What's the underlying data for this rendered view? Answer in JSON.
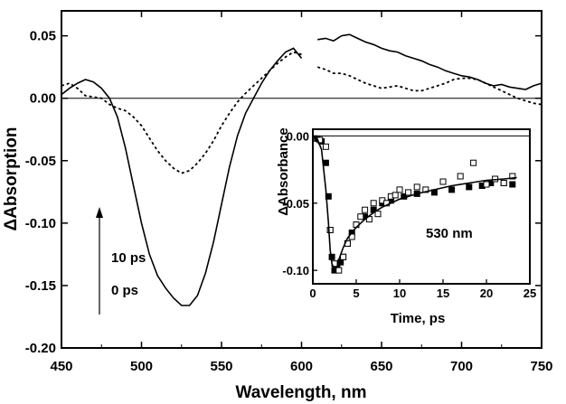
{
  "chart_data": [
    {
      "type": "line",
      "title": "",
      "xlabel": "Wavelength, nm",
      "ylabel": "ΔAbsorption",
      "xlim": [
        450,
        750
      ],
      "ylim": [
        -0.2,
        0.07
      ],
      "xticks": [
        450,
        500,
        550,
        600,
        650,
        700,
        750
      ],
      "yticks": [
        0.05,
        0.0,
        -0.05,
        -0.1,
        -0.15,
        -0.2
      ],
      "ytick_labels": [
        "0.05",
        "0.00",
        "-0.05",
        "-0.10",
        "-0.15",
        "-0.20"
      ],
      "zero_line": true,
      "grid": false,
      "series": [
        {
          "style": "solid",
          "x": [
            450,
            455,
            460,
            465,
            470,
            475,
            480,
            485,
            490,
            495,
            500,
            505,
            510,
            515,
            520,
            525,
            530,
            535,
            540,
            545,
            550,
            555,
            560,
            565,
            570,
            575,
            580,
            585,
            590,
            595,
            600,
            605,
            610,
            615,
            620,
            625,
            630,
            635,
            640,
            645,
            650,
            655,
            660,
            665,
            670,
            675,
            680,
            685,
            690,
            695,
            700,
            705,
            710,
            715,
            720,
            725,
            730,
            735,
            740,
            745,
            750
          ],
          "y": [
            0.003,
            0.008,
            0.012,
            0.015,
            0.013,
            0.008,
            0.0,
            -0.015,
            -0.04,
            -0.07,
            -0.1,
            -0.125,
            -0.142,
            -0.152,
            -0.16,
            -0.166,
            -0.166,
            -0.158,
            -0.14,
            -0.115,
            -0.085,
            -0.055,
            -0.03,
            -0.012,
            0.0,
            0.012,
            0.022,
            0.03,
            0.037,
            0.04,
            0.032,
            null,
            0.047,
            0.048,
            0.046,
            0.05,
            0.051,
            0.048,
            0.045,
            0.043,
            0.04,
            0.038,
            0.037,
            0.034,
            0.032,
            0.03,
            0.027,
            0.025,
            0.022,
            0.02,
            0.018,
            0.017,
            0.015,
            0.012,
            0.01,
            0.011,
            0.009,
            0.008,
            0.007,
            0.01,
            0.012
          ]
        },
        {
          "style": "dashed",
          "x": [
            450,
            455,
            460,
            465,
            470,
            475,
            480,
            485,
            490,
            495,
            500,
            505,
            510,
            515,
            520,
            525,
            530,
            535,
            540,
            545,
            550,
            555,
            560,
            565,
            570,
            575,
            580,
            585,
            590,
            595,
            600,
            605,
            610,
            615,
            620,
            625,
            630,
            635,
            640,
            645,
            650,
            655,
            660,
            665,
            670,
            675,
            680,
            685,
            690,
            695,
            700,
            705,
            710,
            715,
            720,
            725,
            730,
            735,
            740,
            745,
            750
          ],
          "y": [
            0.01,
            0.012,
            0.008,
            0.002,
            0.001,
            0.0,
            -0.005,
            -0.008,
            -0.01,
            -0.015,
            -0.022,
            -0.032,
            -0.042,
            -0.05,
            -0.056,
            -0.06,
            -0.058,
            -0.052,
            -0.044,
            -0.034,
            -0.022,
            -0.012,
            -0.003,
            0.004,
            0.01,
            0.016,
            0.022,
            0.028,
            0.033,
            0.037,
            0.035,
            null,
            0.025,
            0.023,
            0.02,
            0.02,
            0.018,
            0.015,
            0.012,
            0.01,
            0.008,
            0.009,
            0.01,
            0.008,
            0.006,
            0.006,
            0.008,
            0.01,
            0.012,
            0.015,
            0.016,
            0.016,
            0.015,
            0.012,
            0.009,
            0.006,
            0.003,
            0.0,
            -0.002,
            -0.004,
            -0.005
          ]
        }
      ],
      "annotations": [
        "10 ps",
        "0 ps"
      ]
    },
    {
      "type": "scatter",
      "title": "",
      "xlabel": "Time, ps",
      "ylabel": "ΔAbsorbance",
      "xlim": [
        0,
        25
      ],
      "ylim": [
        -0.11,
        0.005
      ],
      "xticks": [
        0,
        5,
        10,
        15,
        20,
        25
      ],
      "yticks": [
        0.0,
        -0.05,
        -0.1
      ],
      "ytick_labels": [
        "0.00",
        "-0.05",
        "-0.10"
      ],
      "zero_line": true,
      "label": "530 nm",
      "series": [
        {
          "marker": "filled-square",
          "x": [
            0.5,
            1.0,
            1.5,
            1.8,
            2.0,
            2.2,
            2.5,
            2.8,
            3.2,
            3.5,
            4.0,
            4.5,
            5.0,
            6.0,
            7.0,
            8.0,
            9.0,
            10.5,
            12,
            14,
            16,
            18,
            19.5,
            20.5,
            22,
            23
          ],
          "y": [
            -0.002,
            -0.004,
            -0.02,
            -0.045,
            -0.07,
            -0.09,
            -0.1,
            -0.098,
            -0.094,
            -0.09,
            -0.08,
            -0.072,
            -0.066,
            -0.06,
            -0.055,
            -0.05,
            -0.048,
            -0.045,
            -0.043,
            -0.042,
            -0.04,
            -0.038,
            -0.037,
            -0.035,
            -0.035,
            -0.036
          ]
        },
        {
          "marker": "open-square",
          "x": [
            0.8,
            1.5,
            2.0,
            2.5,
            3.0,
            3.5,
            4.0,
            4.5,
            5.0,
            5.5,
            6.0,
            6.5,
            7.0,
            7.5,
            8.0,
            8.5,
            9.0,
            9.5,
            10,
            11,
            12,
            13,
            15,
            17,
            18.5,
            20,
            21,
            22,
            23
          ],
          "y": [
            -0.003,
            -0.008,
            -0.07,
            -0.095,
            -0.1,
            -0.09,
            -0.08,
            -0.075,
            -0.066,
            -0.06,
            -0.055,
            -0.062,
            -0.05,
            -0.058,
            -0.048,
            -0.05,
            -0.045,
            -0.044,
            -0.04,
            -0.042,
            -0.038,
            -0.04,
            -0.034,
            -0.03,
            -0.02,
            -0.036,
            -0.032,
            -0.035,
            -0.03
          ]
        },
        {
          "style": "solid-fit",
          "x": [
            0,
            0.5,
            1.0,
            1.5,
            1.8,
            2.0,
            2.2,
            2.5,
            2.8,
            3.0,
            3.5,
            4,
            5,
            6,
            7,
            8,
            10,
            12,
            14,
            16,
            18,
            20,
            22,
            23.5
          ],
          "y": [
            -0.001,
            -0.002,
            -0.01,
            -0.04,
            -0.065,
            -0.085,
            -0.095,
            -0.1,
            -0.097,
            -0.092,
            -0.083,
            -0.076,
            -0.068,
            -0.062,
            -0.057,
            -0.053,
            -0.047,
            -0.043,
            -0.04,
            -0.037,
            -0.035,
            -0.033,
            -0.032,
            -0.031
          ]
        }
      ]
    }
  ]
}
